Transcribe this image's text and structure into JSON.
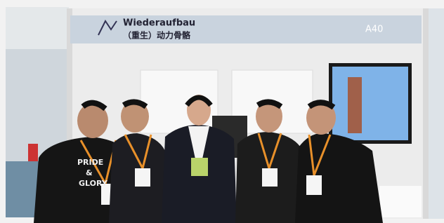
{
  "sign": {
    "title": "Wiederaufbau",
    "subtitle": "（重生）动力骨骼",
    "booth_number": "A40"
  },
  "shirt_print": [
    "PRIDE",
    "&",
    "GLORY"
  ]
}
